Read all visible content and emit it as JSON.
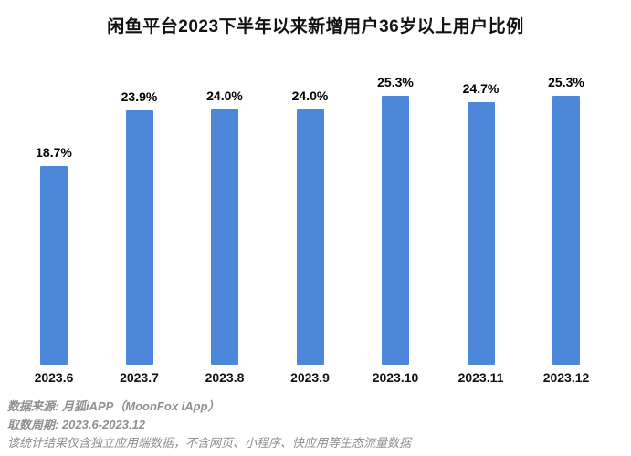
{
  "chart": {
    "title": "闲鱼平台2023下半年以来新增用户36岁以上用户比例"
  },
  "chart_data": {
    "type": "bar",
    "title": "闲鱼平台2023下半年以来新增用户36岁以上用户比例",
    "categories": [
      "2023.6",
      "2023.7",
      "2023.8",
      "2023.9",
      "2023.10",
      "2023.11",
      "2023.12"
    ],
    "values": [
      18.7,
      23.9,
      24.0,
      24.0,
      25.3,
      24.7,
      25.3
    ],
    "value_labels": [
      "18.7%",
      "23.9%",
      "24.0%",
      "24.0%",
      "25.3%",
      "24.7%",
      "25.3%"
    ],
    "xlabel": "",
    "ylabel": "",
    "ylim": [
      0,
      25.3
    ],
    "grid": false,
    "legend": false,
    "bar_color": "#4c87d9",
    "label_color": "#000000"
  },
  "footer": {
    "lines": [
      "数据来源: 月狐iAPP（MoonFox iApp）",
      "取数周期: 2023.6-2023.12",
      "该统计结果仅含独立应用端数据，不含网页、小程序、快应用等生态流量数据"
    ]
  }
}
